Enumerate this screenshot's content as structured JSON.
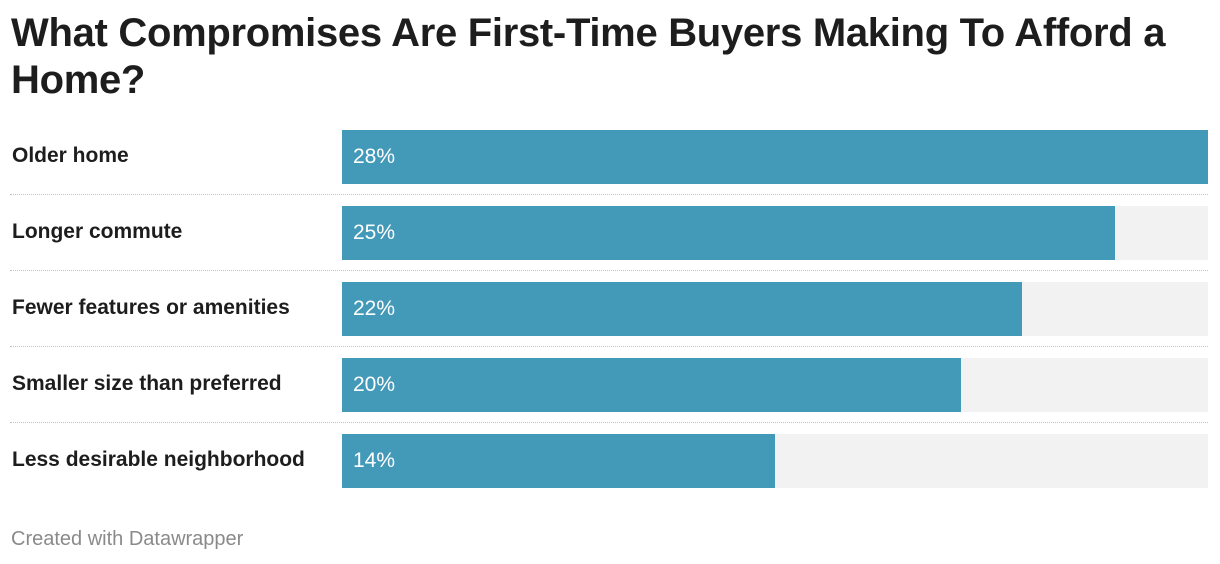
{
  "chart_data": {
    "type": "bar",
    "orientation": "horizontal",
    "title": "What Compromises Are First-Time Buyers Making To Afford a Home?",
    "categories": [
      "Older home",
      "Longer commute",
      "Fewer features or amenities",
      "Smaller size than preferred",
      "Less desirable neighborhood"
    ],
    "values": [
      28,
      25,
      22,
      20,
      14
    ],
    "value_labels": [
      "28%",
      "25%",
      "22%",
      "20%",
      "14%"
    ],
    "unit": "%",
    "xlim": [
      0,
      28
    ],
    "grid": false,
    "legend": "none",
    "colors": {
      "bar": "#4399b8",
      "track": "#f2f2f2",
      "value_text": "#ffffff",
      "label_text": "#1d1d1d"
    }
  },
  "footer": {
    "credit": "Created with Datawrapper"
  }
}
